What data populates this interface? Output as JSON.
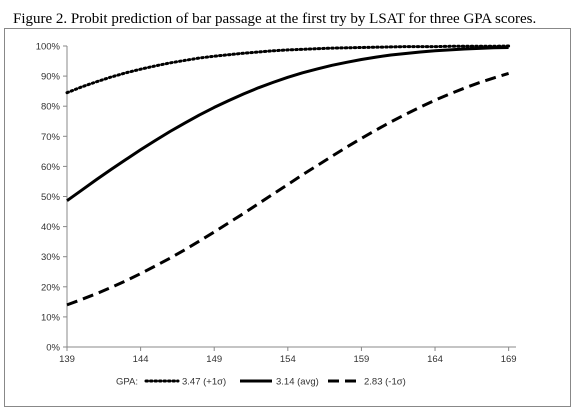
{
  "title": "Figure 2. Probit prediction of bar passage at the first try by LSAT for three GPA scores.",
  "legend_prefix": "GPA:",
  "chart_data": {
    "type": "line",
    "title": "Figure 2. Probit prediction of bar passage at the first try by LSAT for three GPA scores.",
    "xlabel": "",
    "ylabel": "",
    "xlim": [
      139,
      169.5
    ],
    "ylim": [
      0,
      100
    ],
    "x_ticks": [
      139,
      144,
      149,
      154,
      159,
      164,
      169
    ],
    "y_ticks": [
      0,
      10,
      20,
      30,
      40,
      50,
      60,
      70,
      80,
      90,
      100
    ],
    "y_tick_labels": [
      "0%",
      "10%",
      "20%",
      "30%",
      "40%",
      "50%",
      "60%",
      "70%",
      "80%",
      "90%",
      "100%"
    ],
    "grid": false,
    "legend_position": "bottom",
    "x": [
      139,
      140,
      141,
      142,
      143,
      144,
      145,
      146,
      147,
      148,
      149,
      150,
      151,
      152,
      153,
      154,
      155,
      156,
      157,
      158,
      159,
      160,
      161,
      162,
      163,
      164,
      165,
      166,
      167,
      168,
      169
    ],
    "series": [
      {
        "name": "3.47 (+1σ)",
        "style": "dotted",
        "values": [
          84.5,
          86.4,
          88.1,
          89.7,
          91.1,
          92.3,
          93.4,
          94.4,
          95.2,
          96.0,
          96.6,
          97.1,
          97.6,
          98.0,
          98.4,
          98.7,
          98.9,
          99.1,
          99.3,
          99.4,
          99.5,
          99.6,
          99.7,
          99.8,
          99.8,
          99.8,
          99.9,
          99.9,
          99.9,
          99.9,
          100.0
        ]
      },
      {
        "name": "3.14 (avg)",
        "style": "solid",
        "values": [
          48.6,
          52.1,
          55.6,
          59.0,
          62.3,
          65.5,
          68.6,
          71.6,
          74.4,
          77.1,
          79.6,
          81.9,
          84.1,
          86.1,
          87.9,
          89.6,
          91.1,
          92.4,
          93.6,
          94.6,
          95.5,
          96.3,
          97.0,
          97.5,
          98.0,
          98.4,
          98.7,
          99.0,
          99.2,
          99.4,
          99.5
        ]
      },
      {
        "name": "2.83 (-1σ)",
        "style": "dashed",
        "values": [
          14.0,
          15.8,
          17.7,
          19.8,
          22.0,
          24.4,
          26.9,
          29.5,
          32.3,
          35.2,
          38.2,
          41.3,
          44.4,
          47.6,
          50.8,
          54.0,
          57.2,
          60.3,
          63.4,
          66.4,
          69.3,
          72.1,
          74.8,
          77.3,
          79.7,
          82.0,
          84.1,
          86.0,
          87.8,
          89.4,
          90.9
        ]
      }
    ]
  }
}
